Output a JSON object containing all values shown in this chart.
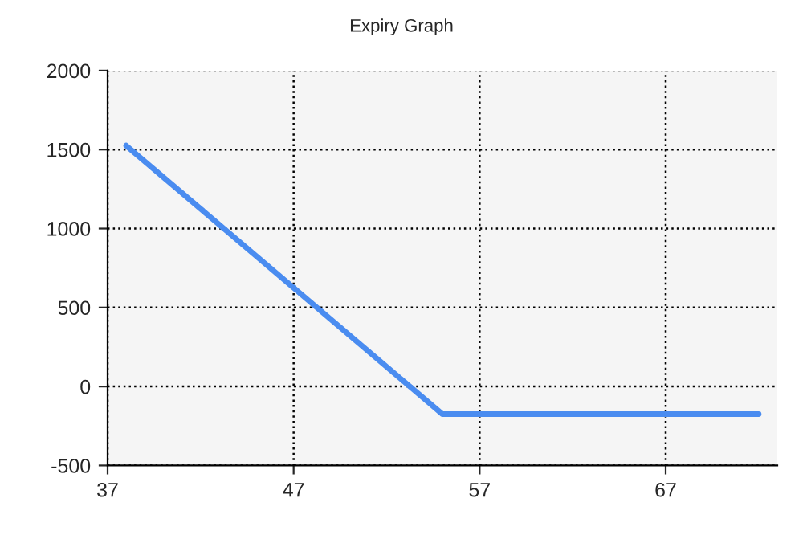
{
  "chart_data": {
    "type": "line",
    "title": "Expiry Graph",
    "series": [
      {
        "color": "#4a8cf0",
        "x": [
          38,
          55,
          72
        ],
        "values": [
          1525,
          -175,
          -175
        ]
      }
    ],
    "xlim": [
      37,
      73
    ],
    "xticks": [
      37,
      47,
      57,
      67
    ],
    "ylim": [
      -500,
      2000
    ],
    "yticks": [
      -500,
      0,
      500,
      1000,
      1500,
      2000
    ],
    "grid": true,
    "legend": false,
    "marker": "none",
    "line_style": "solid"
  }
}
